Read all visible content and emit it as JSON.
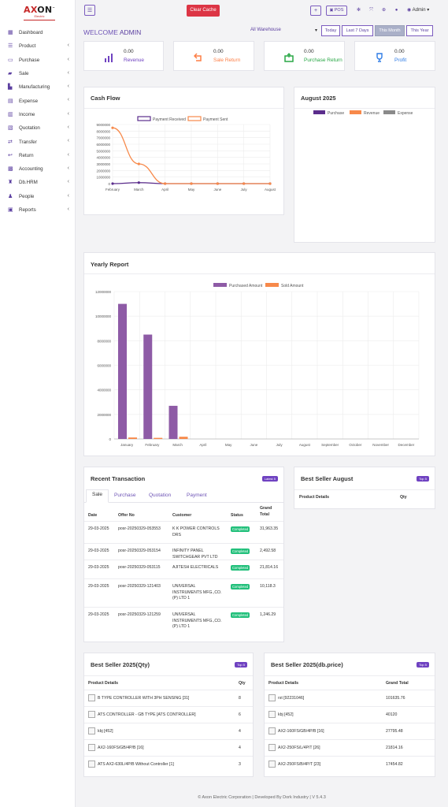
{
  "brand": {
    "name_a": "A",
    "name_x": "X",
    "name_rest": "ON",
    "sub": "Electric",
    "tm": "™"
  },
  "topbar": {
    "menu_icon": "☰",
    "clear_cache": "Clear Cache",
    "plus": "+",
    "pos": "POS",
    "admin": "Admin ▾"
  },
  "sidebar": {
    "items": [
      {
        "label": "Dashboard",
        "icon": "dashboard-icon",
        "chev": ""
      },
      {
        "label": "Product",
        "icon": "product-icon",
        "chev": "‹"
      },
      {
        "label": "Purchase",
        "icon": "purchase-icon",
        "chev": "‹"
      },
      {
        "label": "Sale",
        "icon": "sale-icon",
        "chev": "‹"
      },
      {
        "label": "Manufacturing",
        "icon": "manufacturing-icon",
        "chev": "‹"
      },
      {
        "label": "Expense",
        "icon": "expense-icon",
        "chev": "‹"
      },
      {
        "label": "Income",
        "icon": "income-icon",
        "chev": "‹"
      },
      {
        "label": "Quotation",
        "icon": "quotation-icon",
        "chev": "‹"
      },
      {
        "label": "Transfer",
        "icon": "transfer-icon",
        "chev": "‹"
      },
      {
        "label": "Return",
        "icon": "return-icon",
        "chev": "‹"
      },
      {
        "label": "Accounting",
        "icon": "accounting-icon",
        "chev": "‹"
      },
      {
        "label": "Db.HRM",
        "icon": "hrm-icon",
        "chev": "‹"
      },
      {
        "label": "People",
        "icon": "people-icon",
        "chev": "‹"
      },
      {
        "label": "Reports",
        "icon": "reports-icon",
        "chev": "‹"
      }
    ]
  },
  "welcome": {
    "prefix": "WELCOME",
    "user": "ADMIN"
  },
  "warehouse": {
    "value": "All Warehouse",
    "caret": "▾"
  },
  "ranges": [
    {
      "label": "Today",
      "active": false
    },
    {
      "label": "Last 7 Days",
      "active": false
    },
    {
      "label": "This Month",
      "active": true
    },
    {
      "label": "This Year",
      "active": false
    }
  ],
  "stats": [
    {
      "value": "0.00",
      "label": "Revenue",
      "color": "#6f42c1",
      "icon": "bar-chart-icon"
    },
    {
      "value": "0.00",
      "label": "Sale Return",
      "color": "#fd7e45",
      "icon": "return-arrow-icon"
    },
    {
      "value": "0.00",
      "label": "Purchase Return",
      "color": "#28a745",
      "icon": "purchase-return-icon"
    },
    {
      "value": "0.00",
      "label": "Profit",
      "color": "#2d7be5",
      "icon": "trophy-icon"
    }
  ],
  "cashflow": {
    "title": "Cash Flow",
    "chart_data": {
      "type": "line",
      "categories": [
        "February",
        "March",
        "April",
        "May",
        "June",
        "July",
        "August"
      ],
      "ylim": [
        0,
        9000000
      ],
      "yticks": [
        "9000000",
        "8000000",
        "7000000",
        "6000000",
        "5000000",
        "4000000",
        "3000000",
        "2000000",
        "1000000",
        "0"
      ],
      "series": [
        {
          "name": "Payment Received",
          "color": "#5b2d8c",
          "values": [
            0,
            150000,
            0,
            0,
            0,
            0,
            0
          ]
        },
        {
          "name": "Payment Sent",
          "color": "#f7894a",
          "values": [
            8500000,
            3000000,
            0,
            0,
            0,
            0,
            0
          ]
        }
      ]
    }
  },
  "august": {
    "title": "August 2025",
    "legend": [
      {
        "name": "Purchase",
        "color": "#5b2d8c"
      },
      {
        "name": "Revenue",
        "color": "#f7894a"
      },
      {
        "name": "Expense",
        "color": "#8a8a8a"
      }
    ]
  },
  "yearly": {
    "title": "Yearly Report",
    "chart_data": {
      "type": "bar",
      "categories": [
        "January",
        "February",
        "March",
        "April",
        "May",
        "June",
        "July",
        "August",
        "September",
        "October",
        "November",
        "December"
      ],
      "ylim": [
        0,
        12000000
      ],
      "yticks": [
        "12000000",
        "10000000",
        "8000000",
        "6000000",
        "4000000",
        "2000000",
        "0"
      ],
      "series": [
        {
          "name": "Purchased Amount",
          "color": "#8e5ba6",
          "values": [
            11000000,
            8500000,
            2700000,
            0,
            0,
            0,
            0,
            0,
            0,
            0,
            0,
            0
          ]
        },
        {
          "name": "Sold Amount",
          "color": "#f7894a",
          "values": [
            120000,
            90000,
            180000,
            0,
            0,
            0,
            0,
            0,
            0,
            0,
            0,
            0
          ]
        }
      ]
    }
  },
  "recent": {
    "title": "Recent Transaction",
    "badge": "Latest 5",
    "tabs": [
      "Sale",
      "Purchase",
      "Quotation",
      "Payment"
    ],
    "headers": {
      "date": "Date",
      "offer": "Offer No",
      "customer": "Customer",
      "status": "Status",
      "total": "Grand Total"
    },
    "rows": [
      {
        "date": "29-03-2025",
        "offer": "posr-20250329-053553",
        "customer": "K K POWER CONTROLS DRS",
        "status": "Completed",
        "total": "31,963.35"
      },
      {
        "date": "29-03-2025",
        "offer": "posr-20250329-053154",
        "customer": "INFINITY PANEL SWITCHGEAR PVT LTD",
        "status": "Completed",
        "total": "2,492.58"
      },
      {
        "date": "29-03-2025",
        "offer": "posr-20250329-053115",
        "customer": "AJITESH ELECTRICALS",
        "status": "Completed",
        "total": "21,814.16"
      },
      {
        "date": "29-03-2025",
        "offer": "posr-20250329-121403",
        "customer": "UNIVERSAL INSTRUMENTS MFG.,CO.(P) LTD 1",
        "status": "Completed",
        "total": "10,118.3"
      },
      {
        "date": "29-03-2025",
        "offer": "posr-20250329-121259",
        "customer": "UNIVERSAL INSTRUMENTS MFG.,CO.(P) LTD 1",
        "status": "Completed",
        "total": "1,246.29"
      }
    ]
  },
  "best_aug": {
    "title": "Best Seller August",
    "badge": "Top 5",
    "h1": "Product Details",
    "h2": "Qty"
  },
  "best_qty": {
    "title": "Best Seller 2025(Qty)",
    "badge": "Top 5",
    "h1": "Product Details",
    "h2": "Qty",
    "rows": [
      {
        "name": "B TYPE CONTROLLER WITH 3PH SENSING [31]",
        "val": "8"
      },
      {
        "name": "ATS CONTROLLER - GB TYPE [ATS CONTROLLER]",
        "val": "6"
      },
      {
        "name": "kbj [452]",
        "val": "4"
      },
      {
        "name": "AX2-160FS/GB/4P/B [16]",
        "val": "4"
      },
      {
        "name": "ATS AX2-630L/4P/B Without Controller [1]",
        "val": "3"
      }
    ]
  },
  "best_price": {
    "title": "Best Seller 2025(db.price)",
    "badge": "Top 5",
    "h1": "Product Details",
    "h2": "Grand Total",
    "rows": [
      {
        "name": "rst [92231046]",
        "val": "101635.76"
      },
      {
        "name": "kbj [452]",
        "val": "40120"
      },
      {
        "name": "AX2-160FS/GB/4P/B [16]",
        "val": "27795.48"
      },
      {
        "name": "AX2-250FS/L/4P/T [26]",
        "val": "21814.16"
      },
      {
        "name": "AX2-250FS/B/4P/T [23]",
        "val": "17454.82"
      }
    ]
  },
  "footer": "© Axon Electric Corporation | Developed By Dork Industry | V 5.4.3"
}
